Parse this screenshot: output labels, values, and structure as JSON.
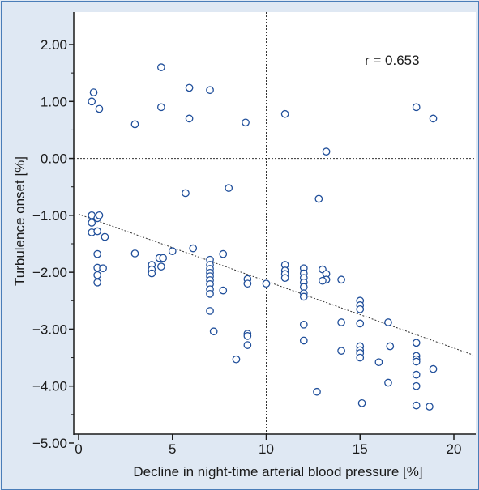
{
  "colors": {
    "background": "#dfe8f3",
    "plot_background": "#ffffff",
    "frame_border": "#4a7db8",
    "marker_stroke": "#1f4e9a",
    "axis": "#1a1a1a"
  },
  "chart_data": {
    "type": "scatter",
    "xlabel": "Decline in night-time arterial blood pressure [%]",
    "ylabel": "Turbulence onset [%]",
    "xlim": [
      0,
      21
    ],
    "ylim": [
      -5,
      2.5
    ],
    "x_ticks": [
      0,
      5,
      10,
      15,
      20
    ],
    "x_tick_labels": [
      "0",
      "5",
      "10",
      "15",
      "20"
    ],
    "y_ticks": [
      2,
      1,
      0,
      -1,
      -2,
      -3,
      -4,
      -5
    ],
    "y_tick_labels": [
      "2.00",
      "1.00",
      "0.00",
      "−1.00",
      "−2.00",
      "−3.00",
      "−4.00",
      "−5.00"
    ],
    "reference_lines": {
      "x": 10,
      "y": 0
    },
    "annotation": "r = 0.653",
    "regression_line": {
      "x": [
        0,
        21
      ],
      "y": [
        -0.98,
        -3.45
      ]
    },
    "grid": false,
    "legend": "none",
    "points": [
      [
        0.8,
        1.16
      ],
      [
        0.7,
        1.0
      ],
      [
        1.1,
        0.87
      ],
      [
        3.0,
        0.6
      ],
      [
        4.4,
        1.6
      ],
      [
        4.4,
        0.9
      ],
      [
        5.9,
        1.24
      ],
      [
        5.9,
        0.7
      ],
      [
        7.0,
        1.2
      ],
      [
        8.9,
        0.63
      ],
      [
        11.0,
        0.78
      ],
      [
        18.0,
        0.9
      ],
      [
        18.9,
        0.7
      ],
      [
        13.2,
        0.12
      ],
      [
        5.7,
        -0.61
      ],
      [
        8.0,
        -0.52
      ],
      [
        12.8,
        -0.71
      ],
      [
        0.7,
        -1.0
      ],
      [
        0.7,
        -1.13
      ],
      [
        0.7,
        -1.3
      ],
      [
        1.0,
        -1.05
      ],
      [
        1.1,
        -1.0
      ],
      [
        1.0,
        -1.28
      ],
      [
        1.4,
        -1.38
      ],
      [
        1.0,
        -1.68
      ],
      [
        1.0,
        -1.92
      ],
      [
        1.3,
        -1.93
      ],
      [
        1.0,
        -2.05
      ],
      [
        1.0,
        -2.18
      ],
      [
        3.0,
        -1.67
      ],
      [
        3.9,
        -1.87
      ],
      [
        3.9,
        -1.95
      ],
      [
        3.9,
        -2.02
      ],
      [
        4.3,
        -1.75
      ],
      [
        4.5,
        -1.75
      ],
      [
        4.4,
        -1.9
      ],
      [
        5.0,
        -1.63
      ],
      [
        6.1,
        -1.58
      ],
      [
        7.0,
        -1.78
      ],
      [
        7.0,
        -1.87
      ],
      [
        7.0,
        -1.94
      ],
      [
        7.0,
        -2.01
      ],
      [
        7.0,
        -2.07
      ],
      [
        7.0,
        -2.14
      ],
      [
        7.0,
        -2.21
      ],
      [
        7.0,
        -2.3
      ],
      [
        7.0,
        -2.38
      ],
      [
        7.7,
        -1.68
      ],
      [
        7.7,
        -2.32
      ],
      [
        7.0,
        -2.68
      ],
      [
        7.2,
        -3.04
      ],
      [
        9.0,
        -2.12
      ],
      [
        9.0,
        -2.2
      ],
      [
        10.0,
        -2.2
      ],
      [
        9.0,
        -3.08
      ],
      [
        9.0,
        -3.12
      ],
      [
        9.0,
        -3.28
      ],
      [
        8.4,
        -3.53
      ],
      [
        11.0,
        -1.87
      ],
      [
        11.0,
        -1.97
      ],
      [
        11.0,
        -2.03
      ],
      [
        11.0,
        -2.1
      ],
      [
        12.0,
        -1.93
      ],
      [
        12.0,
        -2.02
      ],
      [
        12.0,
        -2.1
      ],
      [
        12.0,
        -2.18
      ],
      [
        12.0,
        -2.26
      ],
      [
        12.0,
        -2.37
      ],
      [
        12.0,
        -2.43
      ],
      [
        12.0,
        -2.92
      ],
      [
        12.0,
        -3.2
      ],
      [
        13.0,
        -1.95
      ],
      [
        13.2,
        -2.03
      ],
      [
        13.2,
        -2.13
      ],
      [
        13.0,
        -2.15
      ],
      [
        14.0,
        -2.13
      ],
      [
        14.0,
        -2.88
      ],
      [
        14.0,
        -3.38
      ],
      [
        12.7,
        -4.1
      ],
      [
        15.0,
        -2.5
      ],
      [
        15.0,
        -2.58
      ],
      [
        15.0,
        -2.65
      ],
      [
        15.0,
        -2.9
      ],
      [
        15.0,
        -3.3
      ],
      [
        15.0,
        -3.37
      ],
      [
        15.0,
        -3.42
      ],
      [
        15.0,
        -3.5
      ],
      [
        15.1,
        -4.3
      ],
      [
        16.0,
        -3.58
      ],
      [
        16.5,
        -2.88
      ],
      [
        16.6,
        -3.3
      ],
      [
        16.5,
        -3.94
      ],
      [
        18.0,
        -3.24
      ],
      [
        18.0,
        -3.47
      ],
      [
        18.0,
        -3.53
      ],
      [
        18.0,
        -3.57
      ],
      [
        18.0,
        -3.8
      ],
      [
        18.0,
        -4.0
      ],
      [
        18.0,
        -4.34
      ],
      [
        18.9,
        -3.7
      ],
      [
        18.7,
        -4.36
      ]
    ]
  }
}
